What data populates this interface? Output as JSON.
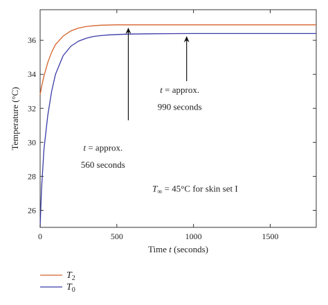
{
  "chart_data": {
    "type": "line",
    "title": "",
    "xlabel_prefix": "Time ",
    "xlabel_var": "t",
    "xlabel_suffix": " (seconds)",
    "ylabel": "Temperature (°C)",
    "xlim": [
      0,
      1800
    ],
    "ylim": [
      25,
      37.8
    ],
    "x_ticks": [
      0,
      500,
      1000,
      1500
    ],
    "y_ticks": [
      26,
      28,
      30,
      32,
      34,
      36
    ],
    "grid": false,
    "legend_position": "bottom-left",
    "series": [
      {
        "name_var": "T",
        "name_sub": "2",
        "color": "#d4622a",
        "x": [
          0,
          10,
          25,
          50,
          75,
          100,
          150,
          200,
          250,
          300,
          350,
          400,
          450,
          500,
          560,
          600,
          700,
          800,
          990,
          1200,
          1500,
          1800
        ],
        "y": [
          32.8,
          33.3,
          33.9,
          34.7,
          35.3,
          35.75,
          36.25,
          36.55,
          36.72,
          36.81,
          36.86,
          36.89,
          36.9,
          36.91,
          36.91,
          36.91,
          36.91,
          36.91,
          36.91,
          36.91,
          36.91,
          36.91
        ]
      },
      {
        "name_var": "T",
        "name_sub": "0",
        "color": "#3a3aa6",
        "x": [
          0,
          5,
          10,
          25,
          50,
          75,
          100,
          150,
          200,
          250,
          300,
          350,
          400,
          450,
          500,
          560,
          600,
          700,
          800,
          990,
          1200,
          1500,
          1800
        ],
        "y": [
          25.0,
          26.3,
          27.4,
          29.6,
          31.6,
          33.0,
          34.0,
          35.1,
          35.65,
          35.95,
          36.12,
          36.23,
          36.28,
          36.32,
          36.34,
          36.36,
          36.37,
          36.38,
          36.39,
          36.4,
          36.4,
          36.4,
          36.4
        ]
      }
    ],
    "annotations": [
      {
        "line1_var": "t",
        "line1_rest": " = approx.",
        "line2": "560 seconds",
        "arrow_x": 575,
        "arrow_y": 36.95,
        "tail_y": 31.3,
        "text_x": 410,
        "text_y1": 29.5,
        "text_y2": 28.5
      },
      {
        "line1_var": "t",
        "line1_rest": " = approx.",
        "line2": "990 seconds",
        "arrow_x": 955,
        "arrow_y": 36.45,
        "tail_y": 33.6,
        "text_x": 910,
        "text_y1": 32.9,
        "text_y2": 31.9
      }
    ],
    "note_var": "T",
    "note_sub": "∞",
    "note_rest": " = 45°C for skin set I",
    "note_x": 1010,
    "note_y": 27.1
  }
}
